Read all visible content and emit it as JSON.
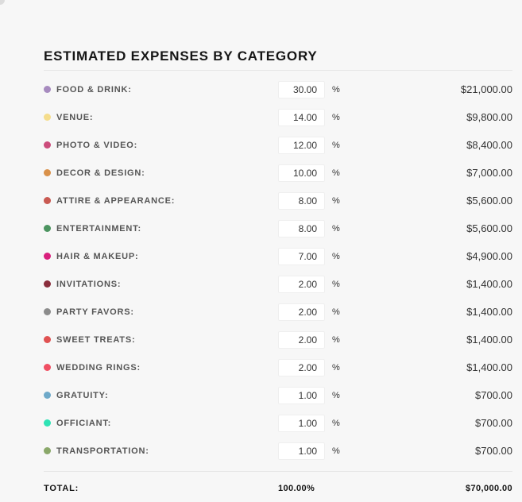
{
  "section": {
    "title": "ESTIMATED EXPENSES BY CATEGORY"
  },
  "categories": [
    {
      "label": "FOOD & DRINK:",
      "percent": "30.00",
      "unit": "%",
      "amount": "$21,000.00",
      "color": "#a78bbf"
    },
    {
      "label": "VENUE:",
      "percent": "14.00",
      "unit": "%",
      "amount": "$9,800.00",
      "color": "#f5dd8c"
    },
    {
      "label": "PHOTO & VIDEO:",
      "percent": "12.00",
      "unit": "%",
      "amount": "$8,400.00",
      "color": "#cc4d7c"
    },
    {
      "label": "DECOR & DESIGN:",
      "percent": "10.00",
      "unit": "%",
      "amount": "$7,000.00",
      "color": "#d9914a"
    },
    {
      "label": "ATTIRE & APPEARANCE:",
      "percent": "8.00",
      "unit": "%",
      "amount": "$5,600.00",
      "color": "#c95a52"
    },
    {
      "label": "ENTERTAINMENT:",
      "percent": "8.00",
      "unit": "%",
      "amount": "$5,600.00",
      "color": "#4c9460"
    },
    {
      "label": "HAIR & MAKEUP:",
      "percent": "7.00",
      "unit": "%",
      "amount": "$4,900.00",
      "color": "#d9207d"
    },
    {
      "label": "INVITATIONS:",
      "percent": "2.00",
      "unit": "%",
      "amount": "$1,400.00",
      "color": "#8a2e3c"
    },
    {
      "label": "PARTY FAVORS:",
      "percent": "2.00",
      "unit": "%",
      "amount": "$1,400.00",
      "color": "#8c8c8c"
    },
    {
      "label": "SWEET TREATS:",
      "percent": "2.00",
      "unit": "%",
      "amount": "$1,400.00",
      "color": "#e05252"
    },
    {
      "label": "WEDDING RINGS:",
      "percent": "2.00",
      "unit": "%",
      "amount": "$1,400.00",
      "color": "#f04f63"
    },
    {
      "label": "GRATUITY:",
      "percent": "1.00",
      "unit": "%",
      "amount": "$700.00",
      "color": "#6ea9c9"
    },
    {
      "label": "OFFICIANT:",
      "percent": "1.00",
      "unit": "%",
      "amount": "$700.00",
      "color": "#2fe3b5"
    },
    {
      "label": "TRANSPORTATION:",
      "percent": "1.00",
      "unit": "%",
      "amount": "$700.00",
      "color": "#8aa86a"
    }
  ],
  "total": {
    "label": "TOTAL:",
    "percent": "100.00%",
    "amount": "$70,000.00"
  }
}
